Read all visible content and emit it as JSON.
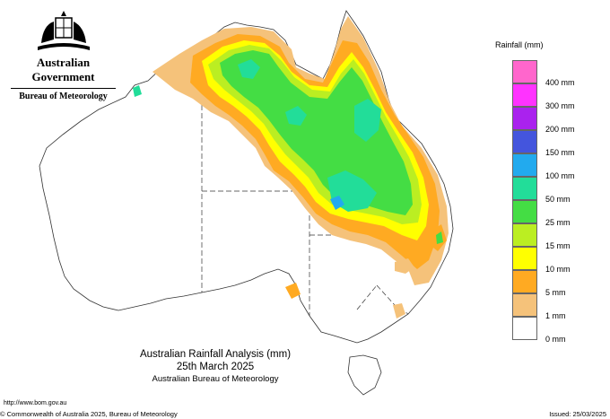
{
  "branding": {
    "government": "Australian Government",
    "agency": "Bureau of Meteorology"
  },
  "title": {
    "line1": "Australian Rainfall Analysis (mm)",
    "line2": "25th March 2025",
    "line3": "Australian Bureau of Meteorology"
  },
  "legend": {
    "title": "Rainfall (mm)",
    "items": [
      {
        "label": "400 mm",
        "color": "#ff66cc"
      },
      {
        "label": "300 mm",
        "color": "#ff33ff"
      },
      {
        "label": "200 mm",
        "color": "#aa22ee"
      },
      {
        "label": "150 mm",
        "color": "#4455dd"
      },
      {
        "label": "100 mm",
        "color": "#22aaee"
      },
      {
        "label": "50 mm",
        "color": "#22dd99"
      },
      {
        "label": "25 mm",
        "color": "#44dd44"
      },
      {
        "label": "15 mm",
        "color": "#bbee22"
      },
      {
        "label": "10 mm",
        "color": "#ffff00"
      },
      {
        "label": "5 mm",
        "color": "#ffaa22"
      },
      {
        "label": "1 mm",
        "color": "#f5c27a"
      },
      {
        "label": "0 mm",
        "color": "#ffffff"
      }
    ]
  },
  "footer": {
    "url": "http://www.bom.gov.au",
    "copyright": "© Commonwealth of Australia 2025, Bureau of Meteorology",
    "issued": "Issued: 25/03/2025"
  }
}
